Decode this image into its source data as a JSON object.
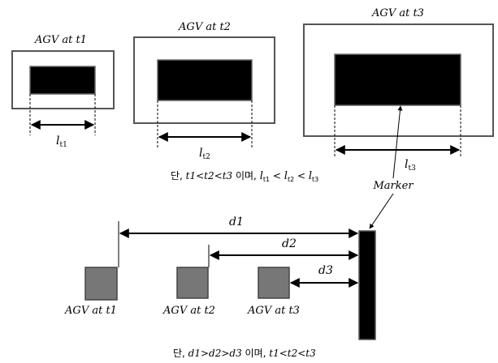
{
  "top_panel": {
    "frames": [
      {
        "caption": "AGV at t1",
        "length_label": "l",
        "length_sub": "t1"
      },
      {
        "caption": "AGV at t2",
        "length_label": "l",
        "length_sub": "t2"
      },
      {
        "caption": "AGV at t3",
        "length_label": "l",
        "length_sub": "t3"
      }
    ],
    "condition": {
      "prefix": "단, ",
      "order": "t1<t2<t3",
      "connector": " 이며, ",
      "l1": "l",
      "s1": "t1",
      "lt1": " < ",
      "l2": "l",
      "s2": "t2",
      "lt2": " < ",
      "l3": "l",
      "s3": "t3"
    },
    "marker_label": "Marker"
  },
  "bottom_panel": {
    "distances": [
      {
        "label": "d1"
      },
      {
        "label": "d2"
      },
      {
        "label": "d3"
      }
    ],
    "agvs": [
      {
        "caption": "AGV at t1"
      },
      {
        "caption": "AGV at t2"
      },
      {
        "caption": "AGV at t3"
      }
    ],
    "condition": {
      "prefix": "단, ",
      "order": "d1>d2>d3",
      "connector": " 이며, ",
      "suffix": "t1<t2<t3"
    }
  },
  "colors": {
    "frame_stroke": "#555555",
    "marker_fill": "#000000",
    "agv_fill": "#777777",
    "arrow": "#000000"
  }
}
